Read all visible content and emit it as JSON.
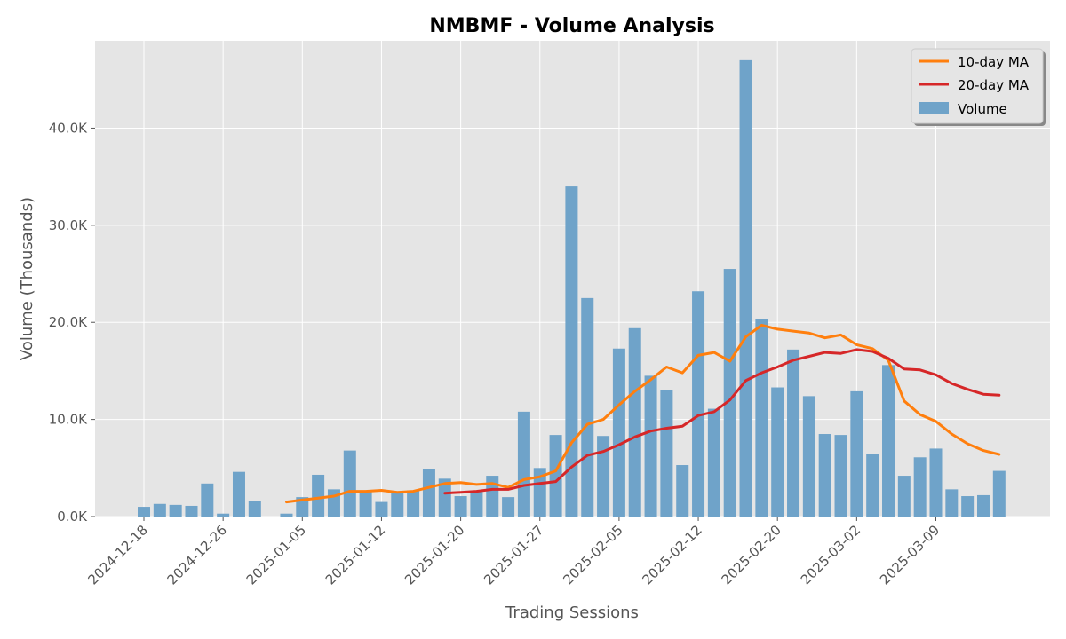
{
  "chart_data": {
    "type": "bar",
    "title": "NMBMF - Volume Analysis",
    "xlabel": "Trading Sessions",
    "ylabel": "Volume (Thousands)",
    "ylim": [
      0,
      49000
    ],
    "grid": true,
    "legend_position": "top-right",
    "colors": {
      "background": "#e5e5e5",
      "bar": "#6fa3c9",
      "ma10": "#ff7f0e",
      "ma20": "#d62728"
    },
    "x_ticks": [
      "2024-12-18",
      "2024-12-26",
      "2025-01-05",
      "2025-01-12",
      "2025-01-20",
      "2025-01-27",
      "2025-02-05",
      "2025-02-12",
      "2025-02-20",
      "2025-03-02",
      "2025-03-09"
    ],
    "y_ticks": [
      "0.0K",
      "10.0K",
      "20.0K",
      "30.0K",
      "40.0K"
    ],
    "legend": [
      "10-day MA",
      "20-day MA",
      "Volume"
    ],
    "series": [
      {
        "name": "Volume",
        "type": "bar",
        "values": [
          1000,
          1300,
          1200,
          1100,
          3400,
          300,
          4600,
          1600,
          null,
          300,
          2000,
          4300,
          2800,
          6800,
          2600,
          1500,
          2500,
          2700,
          4900,
          3900,
          2100,
          2600,
          4200,
          2000,
          10800,
          5000,
          8400,
          34000,
          22500,
          8300,
          17300,
          19400,
          14500,
          13000,
          5300,
          23200,
          11100,
          25500,
          47000,
          20300,
          13300,
          17200,
          12400,
          8500,
          8400,
          12900,
          6400,
          15600,
          4200,
          6100,
          7000,
          2800,
          2100,
          2200,
          4700
        ]
      },
      {
        "name": "10-day MA",
        "type": "line",
        "values": [
          null,
          null,
          null,
          null,
          null,
          null,
          null,
          null,
          null,
          1500,
          1700,
          1900,
          2100,
          2600,
          2600,
          2700,
          2500,
          2600,
          3000,
          3400,
          3500,
          3300,
          3400,
          3000,
          3800,
          4100,
          4700,
          7600,
          9500,
          10000,
          11500,
          12900,
          14100,
          15400,
          14800,
          16600,
          16900,
          16000,
          18500,
          19700,
          19300,
          19100,
          18900,
          18400,
          18700,
          17700,
          17300,
          16100,
          11900,
          10500,
          9800,
          8500,
          7500,
          6800,
          6400
        ]
      },
      {
        "name": "20-day MA",
        "type": "line",
        "values": [
          null,
          null,
          null,
          null,
          null,
          null,
          null,
          null,
          null,
          null,
          null,
          null,
          null,
          null,
          null,
          null,
          null,
          null,
          null,
          2400,
          2500,
          2600,
          2800,
          2800,
          3200,
          3400,
          3600,
          5100,
          6300,
          6700,
          7400,
          8200,
          8800,
          9100,
          9300,
          10400,
          10800,
          12000,
          14000,
          14800,
          15400,
          16100,
          16500,
          16900,
          16800,
          17200,
          17000,
          16300,
          15200,
          15100,
          14600,
          13700,
          13100,
          12600,
          12500
        ]
      }
    ]
  }
}
